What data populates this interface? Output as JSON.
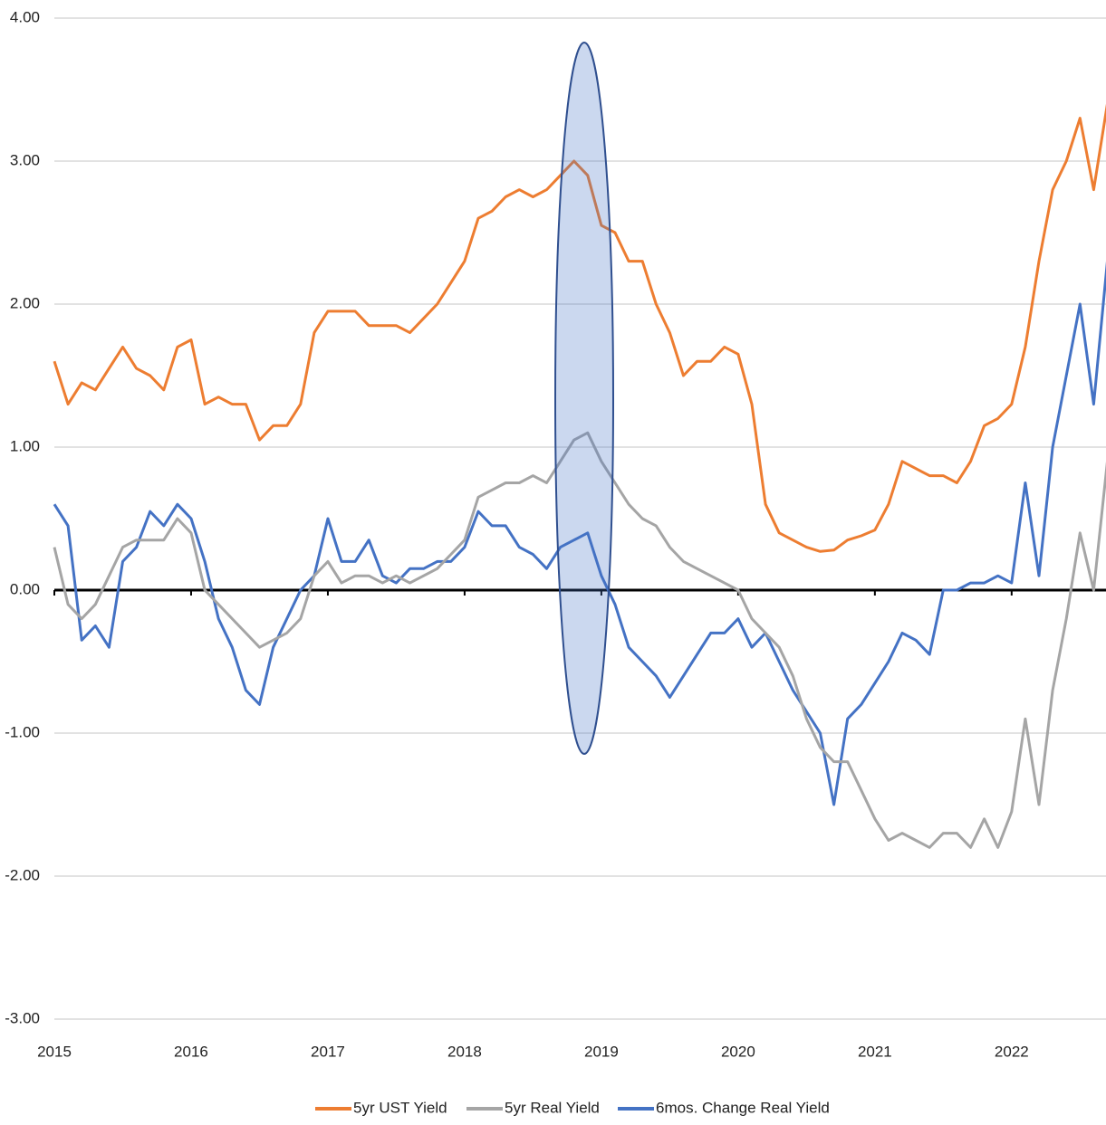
{
  "chart_data": {
    "type": "line",
    "x": [
      2015.0,
      2015.1,
      2015.2,
      2015.3,
      2015.4,
      2015.5,
      2015.6,
      2015.7,
      2015.8,
      2015.9,
      2016.0,
      2016.1,
      2016.2,
      2016.3,
      2016.4,
      2016.5,
      2016.6,
      2016.7,
      2016.8,
      2016.9,
      2017.0,
      2017.1,
      2017.2,
      2017.3,
      2017.4,
      2017.5,
      2017.6,
      2017.7,
      2017.8,
      2017.9,
      2018.0,
      2018.1,
      2018.2,
      2018.3,
      2018.4,
      2018.5,
      2018.6,
      2018.7,
      2018.8,
      2018.9,
      2019.0,
      2019.1,
      2019.2,
      2019.3,
      2019.4,
      2019.5,
      2019.6,
      2019.7,
      2019.8,
      2019.9,
      2020.0,
      2020.1,
      2020.2,
      2020.3,
      2020.4,
      2020.5,
      2020.6,
      2020.7,
      2020.8,
      2020.9,
      2021.0,
      2021.1,
      2021.2,
      2021.3,
      2021.4,
      2021.5,
      2021.6,
      2021.7,
      2021.8,
      2021.9,
      2022.0,
      2022.1,
      2022.2,
      2022.3,
      2022.4,
      2022.5,
      2022.6,
      2022.7
    ],
    "series": [
      {
        "name": "5yr UST Yield",
        "color": "#ed7d31",
        "values": [
          1.6,
          1.3,
          1.45,
          1.4,
          1.55,
          1.7,
          1.55,
          1.5,
          1.4,
          1.7,
          1.75,
          1.3,
          1.35,
          1.3,
          1.3,
          1.05,
          1.15,
          1.15,
          1.3,
          1.8,
          1.95,
          1.95,
          1.95,
          1.85,
          1.85,
          1.85,
          1.8,
          1.9,
          2.0,
          2.15,
          2.3,
          2.6,
          2.65,
          2.75,
          2.8,
          2.75,
          2.8,
          2.9,
          3.0,
          2.9,
          2.55,
          2.5,
          2.3,
          2.3,
          2.0,
          1.8,
          1.5,
          1.6,
          1.6,
          1.7,
          1.65,
          1.3,
          0.6,
          0.4,
          0.35,
          0.3,
          0.27,
          0.28,
          0.35,
          0.38,
          0.42,
          0.6,
          0.9,
          0.85,
          0.8,
          0.8,
          0.75,
          0.9,
          1.15,
          1.2,
          1.3,
          1.7,
          2.3,
          2.8,
          3.0,
          3.3,
          2.8,
          3.4
        ]
      },
      {
        "name": "5yr Real Yield",
        "color": "#a5a5a5",
        "values": [
          0.3,
          -0.1,
          -0.2,
          -0.1,
          0.1,
          0.3,
          0.35,
          0.35,
          0.35,
          0.5,
          0.4,
          0.0,
          -0.1,
          -0.2,
          -0.3,
          -0.4,
          -0.35,
          -0.3,
          -0.2,
          0.1,
          0.2,
          0.05,
          0.1,
          0.1,
          0.05,
          0.1,
          0.05,
          0.1,
          0.15,
          0.25,
          0.35,
          0.65,
          0.7,
          0.75,
          0.75,
          0.8,
          0.75,
          0.9,
          1.05,
          1.1,
          0.9,
          0.75,
          0.6,
          0.5,
          0.45,
          0.3,
          0.2,
          0.15,
          0.1,
          0.05,
          0.0,
          -0.2,
          -0.3,
          -0.4,
          -0.6,
          -0.9,
          -1.1,
          -1.2,
          -1.2,
          -1.4,
          -1.6,
          -1.75,
          -1.7,
          -1.75,
          -1.8,
          -1.7,
          -1.7,
          -1.8,
          -1.6,
          -1.8,
          -1.55,
          -0.9,
          -1.5,
          -0.7,
          -0.2,
          0.4,
          0.0,
          0.9
        ]
      },
      {
        "name": "6mos. Change Real Yield",
        "color": "#4472c4",
        "values": [
          0.6,
          0.45,
          -0.35,
          -0.25,
          -0.4,
          0.2,
          0.3,
          0.55,
          0.45,
          0.6,
          0.5,
          0.2,
          -0.2,
          -0.4,
          -0.7,
          -0.8,
          -0.4,
          -0.2,
          0.0,
          0.1,
          0.5,
          0.2,
          0.2,
          0.35,
          0.1,
          0.05,
          0.15,
          0.15,
          0.2,
          0.2,
          0.3,
          0.55,
          0.45,
          0.45,
          0.3,
          0.25,
          0.15,
          0.3,
          0.35,
          0.4,
          0.1,
          -0.1,
          -0.4,
          -0.5,
          -0.6,
          -0.75,
          -0.6,
          -0.45,
          -0.3,
          -0.3,
          -0.2,
          -0.4,
          -0.3,
          -0.5,
          -0.7,
          -0.85,
          -1.0,
          -1.5,
          -0.9,
          -0.8,
          -0.65,
          -0.5,
          -0.3,
          -0.35,
          -0.45,
          0.0,
          0.0,
          0.05,
          0.05,
          0.1,
          0.05,
          0.75,
          0.1,
          1.0,
          1.5,
          2.0,
          1.3,
          2.3
        ]
      }
    ],
    "xlim": [
      2015,
      2022.69
    ],
    "xticks": [
      2015,
      2016,
      2017,
      2018,
      2019,
      2020,
      2021,
      2022
    ],
    "ylim": [
      -3,
      4
    ],
    "yticks": [
      {
        "value": -3,
        "label": "-3.00"
      },
      {
        "value": -2,
        "label": "-2.00"
      },
      {
        "value": -1,
        "label": "-1.00"
      },
      {
        "value": 0,
        "label": "0.00"
      },
      {
        "value": 1,
        "label": "1.00"
      },
      {
        "value": 2,
        "label": "2.00"
      },
      {
        "value": 3,
        "label": "3.00"
      },
      {
        "value": 4,
        "label": "4.00"
      }
    ],
    "grid": true,
    "legend": "bottom"
  }
}
